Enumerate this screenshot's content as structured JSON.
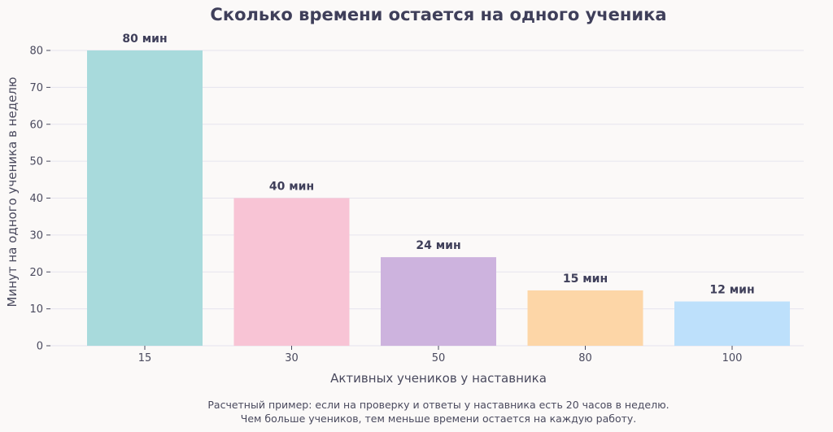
{
  "chart_data": {
    "type": "bar",
    "title": "Сколько времени остается на одного ученика",
    "xlabel": "Активных учеников у наставника",
    "ylabel": "Минут на одного ученика в неделю",
    "categories": [
      "15",
      "30",
      "50",
      "80",
      "100"
    ],
    "values": [
      80,
      40,
      24,
      15,
      12
    ],
    "data_labels": [
      "80 мин",
      "40 мин",
      "24 мин",
      "15 мин",
      "12 мин"
    ],
    "colors": [
      "#a8dadc",
      "#f8c4d5",
      "#cdb3de",
      "#fdd6a7",
      "#bde0fb"
    ],
    "ylim": [
      0,
      80
    ],
    "yticks": [
      0,
      10,
      20,
      30,
      40,
      50,
      60,
      70,
      80
    ],
    "grid": true,
    "caption_lines": [
      "Расчетный пример: если на проверку и ответы у наставника есть 20 часов в неделю.",
      "Чем больше учеников, тем меньше времени остается на каждую работу."
    ]
  }
}
